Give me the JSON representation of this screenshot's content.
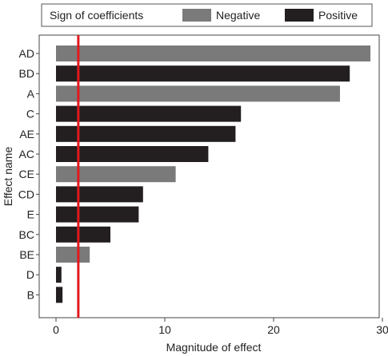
{
  "chart_data": {
    "type": "bar",
    "orientation": "horizontal",
    "xlabel": "Magnitude of effect",
    "ylabel": "Effect name",
    "xlim": [
      -1.5,
      30.5
    ],
    "xticks": [
      0,
      10,
      20,
      30
    ],
    "grid": false,
    "legend": {
      "title": "Sign of coefficients",
      "placement": "top",
      "entries": [
        {
          "name": "Negative",
          "color": "#7a7a7a"
        },
        {
          "name": "Positive",
          "color": "#231f20"
        }
      ]
    },
    "categories": [
      "AD",
      "BD",
      "A",
      "C",
      "AE",
      "AC",
      "CE",
      "CD",
      "E",
      "BC",
      "BE",
      "D",
      "B"
    ],
    "values": [
      28.9,
      27.0,
      26.1,
      17.0,
      16.5,
      14.0,
      11.0,
      8.0,
      7.6,
      5.0,
      3.1,
      0.5,
      0.6
    ],
    "signs": [
      "Negative",
      "Positive",
      "Negative",
      "Positive",
      "Positive",
      "Positive",
      "Negative",
      "Positive",
      "Positive",
      "Positive",
      "Negative",
      "Positive",
      "Positive"
    ],
    "reference_line": {
      "x": 2.05,
      "color": "#e0191e"
    }
  }
}
